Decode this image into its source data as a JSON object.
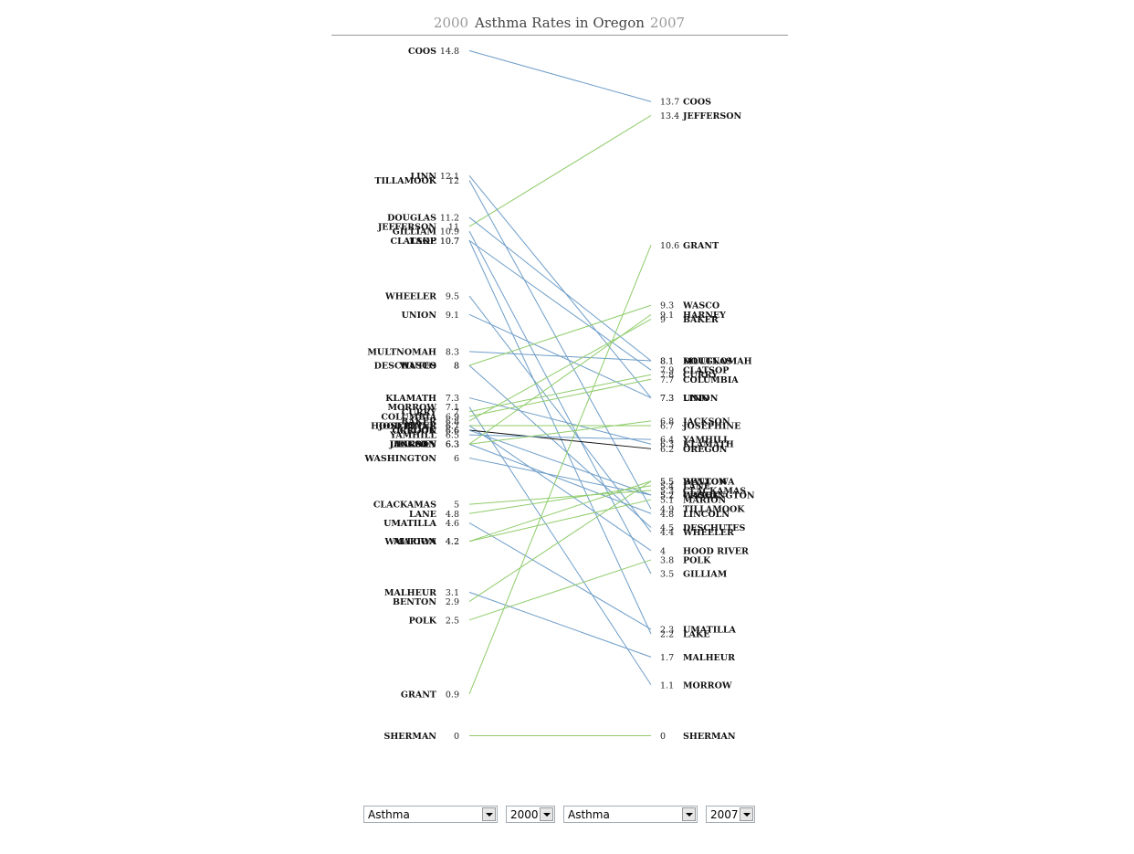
{
  "title": {
    "start_year": "2000",
    "main": "Asthma Rates in Oregon",
    "end_year": "2007"
  },
  "colors": {
    "decrease": "#6e9dc8",
    "increase": "#8fcc6a",
    "state": "#111111",
    "rule": "#999999"
  },
  "controls": {
    "left_measure": "Asthma",
    "left_year": "2000",
    "right_measure": "Asthma",
    "right_year": "2007"
  },
  "chart_data": {
    "type": "slope",
    "title": "Asthma Rates in Oregon",
    "x": [
      "2000",
      "2007"
    ],
    "ylim": [
      0,
      14.8
    ],
    "series": [
      {
        "name": "Coos",
        "v2000": 14.8,
        "l2000": "14.8",
        "v2007": 13.7,
        "l2007": "13.7"
      },
      {
        "name": "Jefferson",
        "v2000": 11,
        "l2000": "11",
        "v2007": 13.4,
        "l2007": "13.4"
      },
      {
        "name": "Linn",
        "v2000": 12.1,
        "l2000": "12.1",
        "v2007": 7.3,
        "l2007": "7.3"
      },
      {
        "name": "Tillamook",
        "v2000": 12,
        "l2000": "12",
        "v2007": 4.9,
        "l2007": "4.9"
      },
      {
        "name": "Douglas",
        "v2000": 11.2,
        "l2000": "11.2",
        "v2007": 8.1,
        "l2007": "8.1"
      },
      {
        "name": "Gilliam",
        "v2000": 10.9,
        "l2000": "10.9",
        "v2007": 3.5,
        "l2007": "3.5"
      },
      {
        "name": "Lake",
        "v2000": 10.7,
        "l2000": "10.7",
        "v2007": 2.2,
        "l2007": "2.2"
      },
      {
        "name": "Clatsop",
        "v2000": 10.7,
        "l2000": "10.7",
        "v2007": 7.9,
        "l2007": "7.9"
      },
      {
        "name": "Wheeler",
        "v2000": 9.5,
        "l2000": "9.5",
        "v2007": 4.4,
        "l2007": "4.4"
      },
      {
        "name": "Union",
        "v2000": 9.1,
        "l2000": "9.1",
        "v2007": 7.3,
        "l2007": "7.3"
      },
      {
        "name": "Multnomah",
        "v2000": 8.3,
        "l2000": "8.3",
        "v2007": 8.1,
        "l2007": "8.1"
      },
      {
        "name": "Wasco",
        "v2000": 8,
        "l2000": "8",
        "v2007": 9.3,
        "l2007": "9.3"
      },
      {
        "name": "Deschutes",
        "v2000": 8,
        "l2000": "8",
        "v2007": 4.5,
        "l2007": "4.5"
      },
      {
        "name": "Klamath",
        "v2000": 7.3,
        "l2000": "7.3",
        "v2007": 6.3,
        "l2007": "6.3"
      },
      {
        "name": "Morrow",
        "v2000": 7.1,
        "l2000": "7.1",
        "v2007": 1.1,
        "l2007": "1.1"
      },
      {
        "name": "Curry",
        "v2000": 7,
        "l2000": "7",
        "v2007": 7.8,
        "l2007": "7.8"
      },
      {
        "name": "Columbia",
        "v2000": 6.9,
        "l2000": "6.9",
        "v2007": 7.7,
        "l2007": "7.7"
      },
      {
        "name": "Baker",
        "v2000": 6.8,
        "l2000": "6.8",
        "v2007": 9,
        "l2007": "9"
      },
      {
        "name": "Josephine",
        "v2000": 6.7,
        "l2000": "6.7",
        "v2007": 6.7,
        "l2007": "6.7"
      },
      {
        "name": "Hood River",
        "v2000": 6.7,
        "l2000": "6.7",
        "v2007": 4,
        "l2007": "4"
      },
      {
        "name": "Oregon",
        "v2000": 6.6,
        "l2000": "6.6",
        "v2007": 6.2,
        "l2007": "6.2",
        "state": true
      },
      {
        "name": "Crook",
        "v2000": 6.6,
        "l2000": "6.6",
        "v2007": 5.2,
        "l2007": "5.2"
      },
      {
        "name": "Yamhill",
        "v2000": 6.5,
        "l2000": "6.5",
        "v2007": 6.4,
        "l2007": "6.4"
      },
      {
        "name": "Lincoln",
        "v2000": 6.3,
        "l2000": "6.3",
        "v2007": 4.8,
        "l2007": "4.8"
      },
      {
        "name": "Jackson",
        "v2000": 6.3,
        "l2000": "6.3",
        "v2007": 6.8,
        "l2007": "6.8"
      },
      {
        "name": "Harney",
        "v2000": 6.3,
        "l2000": "6.3",
        "v2007": 9.1,
        "l2007": "9.1"
      },
      {
        "name": "Washington",
        "v2000": 6,
        "l2000": "6",
        "v2007": 5.2,
        "l2007": "5.2"
      },
      {
        "name": "Clackamas",
        "v2000": 5,
        "l2000": "5",
        "v2007": 5.3,
        "l2007": "5.3"
      },
      {
        "name": "Lane",
        "v2000": 4.8,
        "l2000": "4.8",
        "v2007": 5.4,
        "l2007": "5.4"
      },
      {
        "name": "Umatilla",
        "v2000": 4.6,
        "l2000": "4.6",
        "v2007": 2.3,
        "l2007": "2.3"
      },
      {
        "name": "Wallowa",
        "v2000": 4.2,
        "l2000": "4.2",
        "v2007": 5.5,
        "l2007": "5.5"
      },
      {
        "name": "Marion",
        "v2000": 4.2,
        "l2000": "4.2",
        "v2007": 5.1,
        "l2007": "5.1"
      },
      {
        "name": "Malheur",
        "v2000": 3.1,
        "l2000": "3.1",
        "v2007": 1.7,
        "l2007": "1.7"
      },
      {
        "name": "Benton",
        "v2000": 2.9,
        "l2000": "2.9",
        "v2007": 5.5,
        "l2007": "5.5"
      },
      {
        "name": "Polk",
        "v2000": 2.5,
        "l2000": "2.5",
        "v2007": 3.8,
        "l2007": "3.8"
      },
      {
        "name": "Grant",
        "v2000": 0.9,
        "l2000": "0.9",
        "v2007": 10.6,
        "l2007": "10.6"
      },
      {
        "name": "Sherman",
        "v2000": 0,
        "l2000": "0",
        "v2007": 0,
        "l2007": "0"
      },
      {
        "name": "Columbia",
        "v2000": null,
        "l2000": "",
        "v2007": null,
        "l2007": ""
      }
    ]
  }
}
